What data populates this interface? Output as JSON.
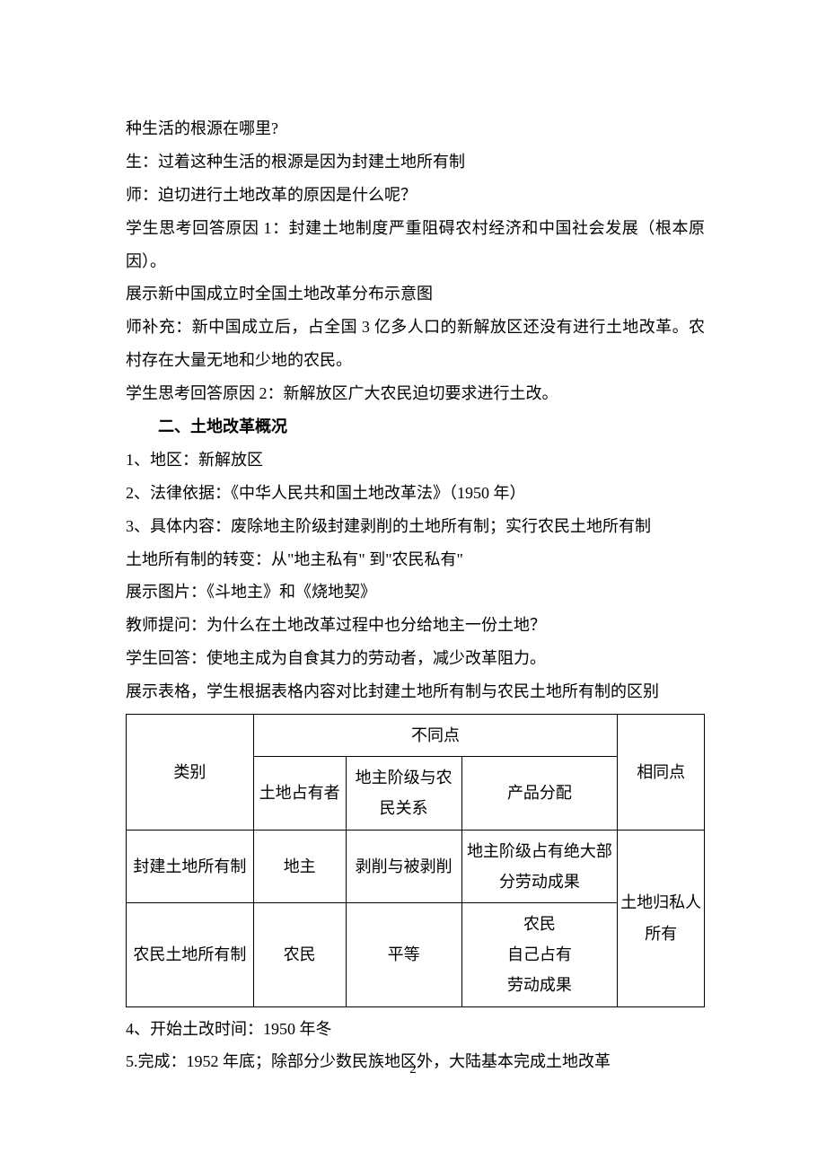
{
  "lines": {
    "l1": "种生活的根源在哪里?",
    "l2": "生：过着这种生活的根源是因为封建土地所有制",
    "l3": "师：迫切进行土地改革的原因是什么呢？",
    "l4": "学生思考回答原因 1：封建土地制度严重阻碍农村经济和中国社会发展（根本原因）。",
    "l5": "展示新中国成立时全国土地改革分布示意图",
    "l6": "师补充：新中国成立后，占全国 3 亿多人口的新解放区还没有进行土地改革。农村存在大量无地和少地的农民。",
    "l7": "学生思考回答原因 2：新解放区广大农民迫切要求进行土改。",
    "h2": "二、土地改革概况",
    "l8": "1、地区：新解放区",
    "l9": "2、法律依据：《中华人民共和国土地改革法》（1950 年）",
    "l10": "3、具体内容：废除地主阶级封建剥削的土地所有制；实行农民土地所有制",
    "l11": "土地所有制的转变：从\"地主私有\" 到\"农民私有\"",
    "l12": "展示图片：《斗地主》和《烧地契》",
    "l13": "教师提问：为什么在土地改革过程中也分给地主一份土地？",
    "l14": "学生回答：使地主成为自食其力的劳动者，减少改革阻力。",
    "l15": "展示表格，学生根据表格内容对比封建土地所有制与农民土地所有制的区别",
    "l16": "4、开始土改时间：1950 年冬",
    "l17": "5.完成：1952 年底；除部分少数民族地区外，大陆基本完成土地改革"
  },
  "table": {
    "header": {
      "category": "类别",
      "diff": "不同点",
      "same": "相同点",
      "owner": "土地占有者",
      "relation": "地主阶级与农民关系",
      "distribution": "产品分配"
    },
    "rows": {
      "r1": {
        "cat": "封建土地所有制",
        "owner": "地主",
        "rel": "剥削与被剥削",
        "dist": "地主阶级占有绝大部分劳动成果"
      },
      "r2": {
        "cat": "农民土地所有制",
        "owner": "农民",
        "rel": "平等",
        "dist_l1": "农民",
        "dist_l2": "自己占有",
        "dist_l3": "劳动成果"
      },
      "same": "土地归私人所有"
    }
  },
  "page_number": "2"
}
